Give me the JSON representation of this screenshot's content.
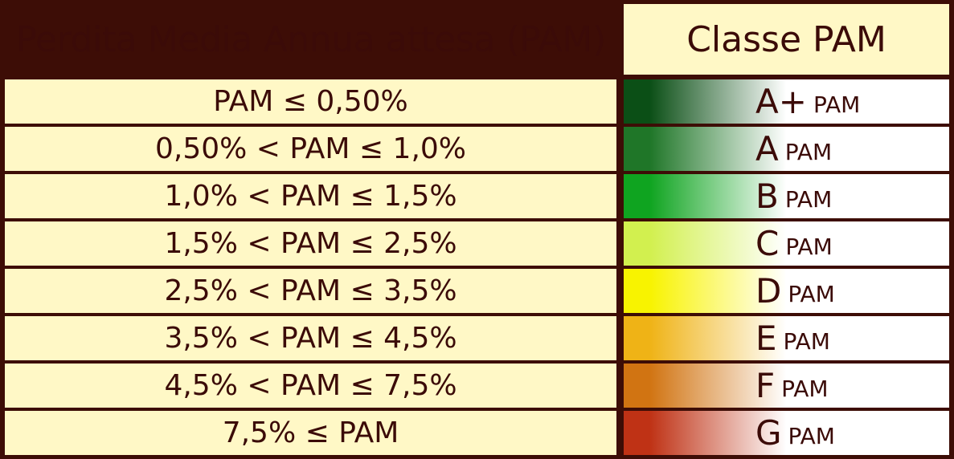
{
  "header": {
    "left": "Perdita Media Annua attesa (PAM)",
    "right": "Classe PAM"
  },
  "rows": [
    {
      "range": "PAM ≤ 0,50%",
      "class": "A+",
      "suffix": "PAM",
      "color": "#0b4f16"
    },
    {
      "range": "0,50% < PAM ≤ 1,0%",
      "class": "A",
      "suffix": "PAM",
      "color": "#1f7628"
    },
    {
      "range": "1,0% < PAM ≤ 1,5%",
      "class": "B",
      "suffix": "PAM",
      "color": "#0fa420"
    },
    {
      "range": "1,5% < PAM ≤ 2,5%",
      "class": "C",
      "suffix": "PAM",
      "color": "#d2f04f"
    },
    {
      "range": "2,5% < PAM ≤ 3,5%",
      "class": "D",
      "suffix": "PAM",
      "color": "#f8f300"
    },
    {
      "range": "3,5% < PAM ≤ 4,5%",
      "class": "E",
      "suffix": "PAM",
      "color": "#efb316"
    },
    {
      "range": "4,5% < PAM ≤ 7,5%",
      "class": "F",
      "suffix": "PAM",
      "color": "#d17412"
    },
    {
      "range": "7,5% ≤ PAM",
      "class": "G",
      "suffix": "PAM",
      "color": "#bf3215"
    }
  ]
}
